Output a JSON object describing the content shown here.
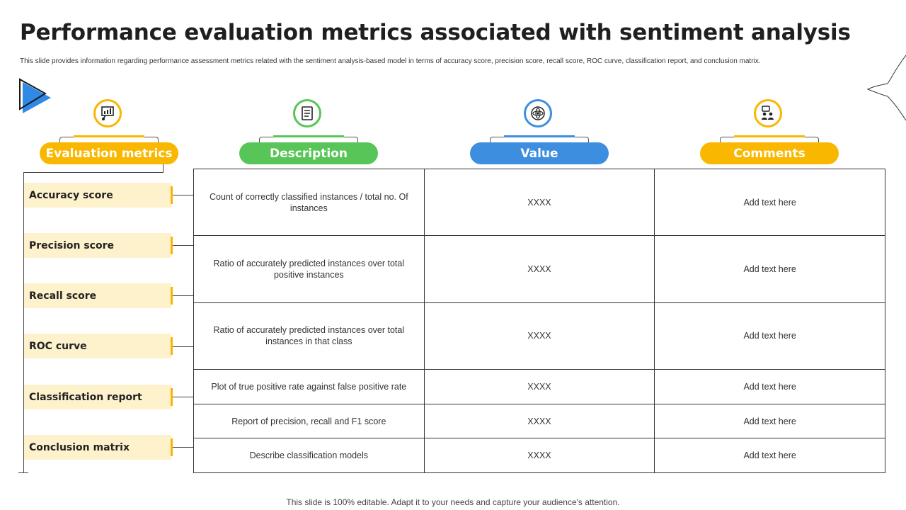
{
  "title": "Performance evaluation metrics associated with sentiment analysis",
  "subtitle": "This slide provides information regarding performance assessment metrics related with the sentiment analysis-based model in terms of accuracy score, precision score, recall score, ROC curve, classification report, and conclusion matrix.",
  "headers": [
    {
      "label": "Evaluation metrics",
      "color": "#f9b700",
      "icon": "presentation-chart-icon"
    },
    {
      "label": "Description",
      "color": "#57c557",
      "icon": "document-list-icon"
    },
    {
      "label": "Value",
      "color": "#3d8ede",
      "icon": "atom-gear-icon"
    },
    {
      "label": "Comments",
      "color": "#f9b700",
      "icon": "team-discussion-icon"
    }
  ],
  "rows": [
    {
      "metric": "Accuracy score",
      "description": "Count of correctly classified instances / total no. Of instances",
      "value": "XXXX",
      "comment": "Add text here"
    },
    {
      "metric": "Precision score",
      "description": "Ratio of accurately predicted instances over total positive instances",
      "value": "XXXX",
      "comment": "Add text here"
    },
    {
      "metric": "Recall score",
      "description": "Ratio of accurately predicted instances over total instances in that class",
      "value": "XXXX",
      "comment": "Add text here"
    },
    {
      "metric": "ROC curve",
      "description": "Plot of true positive rate against false positive rate",
      "value": "XXXX",
      "comment": "Add text here"
    },
    {
      "metric": "Classification report",
      "description": "Report of precision, recall and F1 score",
      "value": "XXXX",
      "comment": "Add text here"
    },
    {
      "metric": "Conclusion matrix",
      "description": "Describe classification models",
      "value": "XXXX",
      "comment": "Add text here"
    }
  ],
  "footer": "This slide is 100% editable. Adapt it to your needs and capture your audience's attention.",
  "colors": {
    "accent_yellow": "#f9b700",
    "accent_green": "#57c557",
    "accent_blue": "#3d8ede",
    "metric_bg": "#fef2cc"
  }
}
